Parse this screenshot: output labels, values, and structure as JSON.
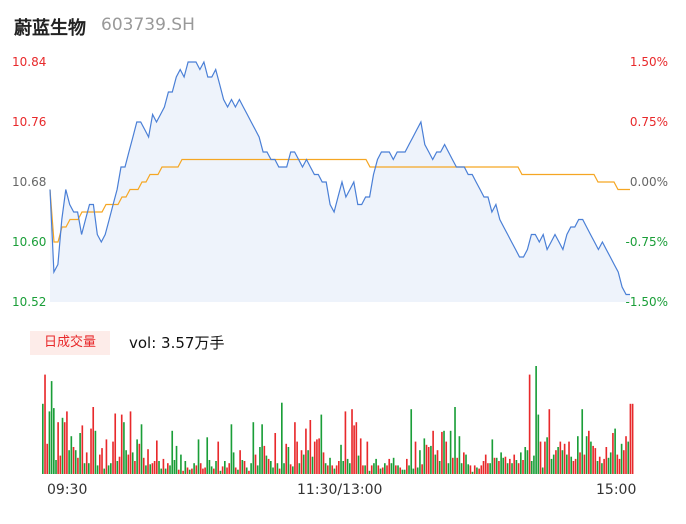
{
  "header": {
    "name": "蔚蓝生物",
    "code": "603739.SH"
  },
  "colors": {
    "price_line": "#4a7fd6",
    "avg_line": "#f5a623",
    "up": "#e8292b",
    "down": "#1a9e38",
    "flat": "#666666",
    "area_fill": "#eef3fb"
  },
  "volume": {
    "badge": "日成交量",
    "text": "vol: 3.57万手"
  },
  "chart_data": [
    {
      "type": "line",
      "y_ticks_left": [
        "10.84",
        "10.76",
        "10.68",
        "10.60",
        "10.52"
      ],
      "y_ticks_right": [
        "1.50%",
        "0.75%",
        "0.00%",
        "-0.75%",
        "-1.50%"
      ],
      "ylim": [
        10.52,
        10.84
      ],
      "prev_close": 10.68,
      "x_ticks": [
        "09:30",
        "11:30/13:00",
        "15:00"
      ],
      "series": [
        {
          "key": "price",
          "values": [
            10.67,
            10.56,
            10.57,
            10.63,
            10.67,
            10.65,
            10.64,
            10.64,
            10.61,
            10.63,
            10.65,
            10.65,
            10.61,
            10.6,
            10.61,
            10.63,
            10.65,
            10.67,
            10.7,
            10.7,
            10.72,
            10.74,
            10.76,
            10.76,
            10.75,
            10.74,
            10.77,
            10.76,
            10.77,
            10.78,
            10.8,
            10.8,
            10.82,
            10.83,
            10.82,
            10.84,
            10.84,
            10.84,
            10.83,
            10.84,
            10.82,
            10.82,
            10.83,
            10.81,
            10.79,
            10.78,
            10.79,
            10.78,
            10.79,
            10.78,
            10.77,
            10.76,
            10.75,
            10.74,
            10.72,
            10.72,
            10.71,
            10.71,
            10.7,
            10.7,
            10.7,
            10.72,
            10.72,
            10.71,
            10.7,
            10.71,
            10.7,
            10.69,
            10.69,
            10.68,
            10.68,
            10.65,
            10.64,
            10.66,
            10.68,
            10.66,
            10.67,
            10.68,
            10.65,
            10.65,
            10.66,
            10.66,
            10.69,
            10.71,
            10.72,
            10.72,
            10.72,
            10.71,
            10.72,
            10.72,
            10.72,
            10.73,
            10.74,
            10.75,
            10.76,
            10.73,
            10.72,
            10.71,
            10.72,
            10.72,
            10.73,
            10.72,
            10.71,
            10.7,
            10.7,
            10.7,
            10.69,
            10.69,
            10.68,
            10.67,
            10.66,
            10.66,
            10.64,
            10.65,
            10.63,
            10.62,
            10.61,
            10.6,
            10.59,
            10.58,
            10.58,
            10.59,
            10.61,
            10.61,
            10.6,
            10.61,
            10.59,
            10.6,
            10.61,
            10.6,
            10.59,
            10.61,
            10.62,
            10.62,
            10.63,
            10.63,
            10.62,
            10.61,
            10.6,
            10.59,
            10.6,
            10.59,
            10.58,
            10.57,
            10.56,
            10.54,
            10.53,
            10.53
          ]
        },
        {
          "key": "average",
          "values": [
            10.67,
            10.6,
            10.6,
            10.62,
            10.62,
            10.63,
            10.63,
            10.63,
            10.64,
            10.64,
            10.64,
            10.64,
            10.64,
            10.64,
            10.65,
            10.65,
            10.65,
            10.65,
            10.66,
            10.66,
            10.67,
            10.67,
            10.67,
            10.68,
            10.68,
            10.69,
            10.69,
            10.69,
            10.7,
            10.7,
            10.7,
            10.7,
            10.7,
            10.71,
            10.71,
            10.71,
            10.71,
            10.71,
            10.71,
            10.71,
            10.71,
            10.71,
            10.71,
            10.71,
            10.71,
            10.71,
            10.71,
            10.71,
            10.71,
            10.71,
            10.71,
            10.71,
            10.71,
            10.71,
            10.71,
            10.71,
            10.71,
            10.71,
            10.71,
            10.71,
            10.71,
            10.71,
            10.71,
            10.71,
            10.71,
            10.71,
            10.71,
            10.71,
            10.71,
            10.71,
            10.71,
            10.71,
            10.71,
            10.71,
            10.71,
            10.71,
            10.71,
            10.71,
            10.71,
            10.71,
            10.7,
            10.7,
            10.7,
            10.7,
            10.7,
            10.7,
            10.7,
            10.7,
            10.7,
            10.7,
            10.7,
            10.7,
            10.7,
            10.7,
            10.7,
            10.7,
            10.7,
            10.7,
            10.7,
            10.7,
            10.7,
            10.7,
            10.7,
            10.7,
            10.7,
            10.7,
            10.7,
            10.7,
            10.7,
            10.7,
            10.7,
            10.7,
            10.7,
            10.7,
            10.7,
            10.7,
            10.7,
            10.7,
            10.69,
            10.69,
            10.69,
            10.69,
            10.69,
            10.69,
            10.69,
            10.69,
            10.69,
            10.69,
            10.69,
            10.69,
            10.69,
            10.69,
            10.69,
            10.69,
            10.69,
            10.69,
            10.69,
            10.68,
            10.68,
            10.68,
            10.68,
            10.68,
            10.67,
            10.67,
            10.67,
            10.67
          ]
        }
      ]
    },
    {
      "type": "bar",
      "unit": "万手",
      "values": [
        0.65,
        0.92,
        0.28,
        0.58,
        0.86,
        0.61,
        0.13,
        0.48,
        0.17,
        0.52,
        0.48,
        0.58,
        0.22,
        0.35,
        0.25,
        0.22,
        0.15,
        0.38,
        0.45,
        0.1,
        0.2,
        0.1,
        0.42,
        0.62,
        0.4,
        0.08,
        0.18,
        0.24,
        0.05,
        0.32,
        0.08,
        0.1,
        0.3,
        0.56,
        0.12,
        0.16,
        0.55,
        0.48,
        0.22,
        0.18,
        0.58,
        0.2,
        0.12,
        0.32,
        0.28,
        0.46,
        0.15,
        0.08,
        0.23,
        0.09,
        0.1,
        0.12,
        0.31,
        0.12,
        0.05,
        0.14,
        0.05,
        0.1,
        0.08,
        0.4,
        0.13,
        0.26,
        0.04,
        0.18,
        0.03,
        0.12,
        0.06,
        0.04,
        0.05,
        0.1,
        0.08,
        0.32,
        0.1,
        0.05,
        0.06,
        0.34,
        0.13,
        0.07,
        0.05,
        0.12,
        0.3,
        0.03,
        0.07,
        0.12,
        0.06,
        0.1,
        0.46,
        0.2,
        0.06,
        0.04,
        0.22,
        0.13,
        0.12,
        0.06,
        0.03,
        0.1,
        0.48,
        0.18,
        0.08,
        0.25,
        0.46,
        0.26,
        0.17,
        0.14,
        0.12,
        0.06,
        0.38,
        0.1,
        0.05,
        0.66,
        0.1,
        0.28,
        0.25,
        0.09,
        0.07,
        0.48,
        0.3,
        0.1,
        0.22,
        0.18,
        0.42,
        0.22,
        0.5,
        0.16,
        0.3,
        0.32,
        0.33,
        0.55,
        0.2,
        0.1,
        0.08,
        0.15,
        0.08,
        0.05,
        0.08,
        0.12,
        0.27,
        0.12,
        0.58,
        0.14,
        0.1,
        0.6,
        0.45,
        0.48,
        0.17,
        0.33,
        0.08,
        0.08,
        0.3,
        0.03,
        0.08,
        0.1,
        0.14,
        0.08,
        0.05,
        0.06,
        0.1,
        0.08,
        0.14,
        0.1,
        0.15,
        0.08,
        0.08,
        0.06,
        0.04,
        0.04,
        0.14,
        0.08,
        0.6,
        0.05,
        0.3,
        0.06,
        0.22,
        0.09,
        0.33,
        0.27,
        0.25,
        0.26,
        0.4,
        0.18,
        0.22,
        0.12,
        0.39,
        0.4,
        0.3,
        0.1,
        0.4,
        0.15,
        0.62,
        0.15,
        0.35,
        0.1,
        0.2,
        0.18,
        0.09,
        0.08,
        0.02,
        0.08,
        0.06,
        0.05,
        0.08,
        0.12,
        0.18,
        0.1,
        0.1,
        0.32,
        0.15,
        0.15,
        0.12,
        0.2,
        0.15,
        0.16,
        0.1,
        0.14,
        0.1,
        0.18,
        0.13,
        0.1,
        0.2,
        0.13,
        0.25,
        0.22,
        0.92,
        0.12,
        0.17,
        1.0,
        0.55,
        0.3,
        0.06,
        0.3,
        0.34,
        0.6,
        0.14,
        0.18,
        0.22,
        0.25,
        0.3,
        0.22,
        0.28,
        0.18,
        0.3,
        0.16,
        0.12,
        0.14,
        0.35,
        0.2,
        0.6,
        0.18,
        0.35,
        0.4,
        0.3,
        0.26,
        0.24,
        0.12,
        0.16,
        0.1,
        0.14,
        0.25,
        0.15,
        0.2,
        0.38,
        0.42,
        0.18,
        0.14,
        0.28,
        0.22,
        0.35,
        0.3,
        0.65,
        0.65
      ],
      "dirs": [
        0,
        1,
        1,
        0,
        0,
        0,
        0,
        1,
        1,
        0,
        1,
        1,
        0,
        0,
        1,
        0,
        1,
        0,
        1,
        0,
        1,
        0,
        1,
        1,
        0,
        0,
        1,
        1,
        0,
        1,
        0,
        0,
        1,
        1,
        0,
        1,
        1,
        0,
        0,
        1,
        1,
        0,
        1,
        0,
        1,
        0,
        1,
        0,
        1,
        0,
        1,
        1,
        1,
        0,
        0,
        1,
        0,
        1,
        0,
        0,
        0,
        0,
        1,
        0,
        1,
        0,
        1,
        0,
        1,
        0,
        1,
        0,
        1,
        1,
        1,
        0,
        0,
        0,
        1,
        0,
        1,
        0,
        1,
        0,
        1,
        1,
        0,
        0,
        1,
        0,
        1,
        0,
        1,
        0,
        1,
        0,
        0,
        1,
        0,
        0,
        0,
        1,
        0,
        1,
        0,
        0,
        1,
        0,
        1,
        0,
        0,
        1,
        0,
        1,
        0,
        1,
        1,
        0,
        1,
        0,
        1,
        0,
        1,
        0,
        1,
        1,
        1,
        0,
        1,
        0,
        1,
        0,
        1,
        0,
        1,
        1,
        0,
        0,
        1,
        0,
        0,
        1,
        1,
        1,
        0,
        1,
        1,
        0,
        1,
        0,
        1,
        0,
        0,
        1,
        0,
        1,
        0,
        1,
        1,
        0,
        0,
        1,
        0,
        1,
        0,
        0,
        1,
        0,
        0,
        0,
        1,
        0,
        0,
        1,
        0,
        1,
        1,
        0,
        1,
        0,
        1,
        0,
        1,
        0,
        1,
        0,
        0,
        1,
        0,
        1,
        0,
        0,
        1,
        0,
        0,
        1,
        0,
        1,
        0,
        1,
        1,
        1,
        1,
        1,
        0,
        0,
        1,
        0,
        1,
        0,
        0,
        1,
        0,
        1,
        0,
        1,
        0,
        1,
        0,
        1,
        0,
        0,
        1,
        0,
        0,
        0,
        0,
        1,
        0,
        1,
        0,
        1,
        0,
        0,
        1,
        0,
        1,
        0,
        1,
        0,
        1,
        0,
        1,
        1,
        0,
        1,
        0,
        1,
        0,
        1,
        0,
        1,
        1,
        0,
        1,
        0,
        1,
        1,
        0,
        0,
        1,
        0,
        1,
        1,
        0,
        1,
        1,
        0,
        1,
        1,
        0,
        1,
        1,
        0,
        1,
        1,
        0,
        1,
        1
      ]
    }
  ]
}
